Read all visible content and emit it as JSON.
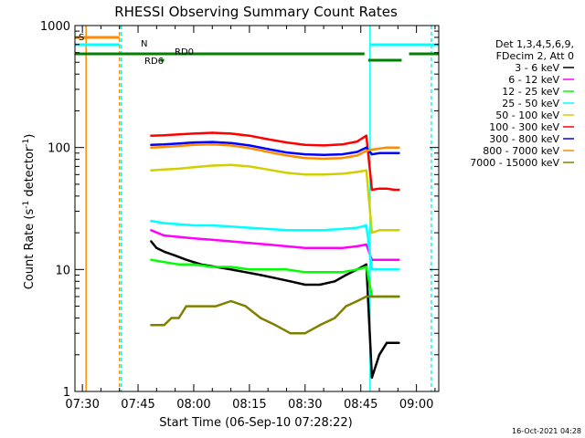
{
  "chart_data": {
    "type": "line",
    "title": "RHESSI Observing Summary Count Rates",
    "xlabel": "Start Time (06-Sep-10 07:28:22)",
    "ylabel_main": "Count Rate (s",
    "ylabel_sup1": "-1",
    "ylabel_mid": " detector",
    "ylabel_sup2": "-1",
    "ylabel_end": ")",
    "yscale": "log",
    "ylim": [
      1,
      1000
    ],
    "xlim_minutes": [
      -2,
      96
    ],
    "x_ticks": [
      {
        "label": "07:30",
        "minutes": 0
      },
      {
        "label": "07:45",
        "minutes": 15
      },
      {
        "label": "08:00",
        "minutes": 30
      },
      {
        "label": "08:15",
        "minutes": 45
      },
      {
        "label": "08:30",
        "minutes": 60
      },
      {
        "label": "08:45",
        "minutes": 75
      },
      {
        "label": "09:00",
        "minutes": 90
      }
    ],
    "y_ticks": [
      {
        "label": "1",
        "value": 1
      },
      {
        "label": "10",
        "value": 10
      },
      {
        "label": "100",
        "value": 100
      },
      {
        "label": "1000",
        "value": 1000
      }
    ],
    "legend_header": [
      "Det 1,3,4,5,6,9,",
      "FDecim 2, Att 0"
    ],
    "series": [
      {
        "name": "3 - 6 keV",
        "color": "#000000",
        "x": [
          18.5,
          20,
          22,
          25,
          28,
          32,
          36,
          40,
          44,
          48,
          52,
          56,
          60,
          64,
          68,
          71,
          74,
          76.5,
          78,
          80,
          82,
          84,
          85.3
        ],
        "values": [
          17,
          15,
          14,
          13,
          12,
          11,
          10.5,
          10,
          9.5,
          9,
          8.5,
          8,
          7.5,
          7.5,
          8,
          9,
          10,
          11,
          1.3,
          2,
          2.5,
          2.5,
          2.5
        ]
      },
      {
        "name": "6 - 12 keV",
        "color": "#ff00ff",
        "x": [
          18.5,
          22,
          26,
          30,
          35,
          40,
          45,
          50,
          55,
          60,
          65,
          70,
          74,
          76.5,
          78,
          80,
          82,
          84,
          85.3
        ],
        "values": [
          21,
          19,
          18.5,
          18,
          17.5,
          17,
          16.5,
          16,
          15.5,
          15,
          15,
          15,
          15.5,
          16,
          12,
          12,
          12,
          12,
          12
        ]
      },
      {
        "name": "12 - 25 keV",
        "color": "#00ff00",
        "x": [
          18.5,
          22,
          26,
          30,
          35,
          40,
          45,
          50,
          55,
          60,
          65,
          70,
          74,
          76.5,
          78,
          80,
          82,
          84,
          85.3
        ],
        "values": [
          12,
          11.5,
          11,
          11,
          10.5,
          10.5,
          10,
          10,
          10,
          9.5,
          9.5,
          9.5,
          10,
          10.5,
          6,
          6,
          6,
          6,
          6
        ]
      },
      {
        "name": "25 - 50 keV",
        "color": "#00ffff",
        "x": [
          18.5,
          22,
          26,
          30,
          35,
          40,
          45,
          50,
          55,
          60,
          65,
          70,
          74,
          76.5,
          78,
          80,
          82,
          84,
          85.3
        ],
        "values": [
          25,
          24,
          23.5,
          23,
          23,
          22.5,
          22,
          21.5,
          21,
          21,
          21,
          21.5,
          22,
          23,
          10,
          10,
          10,
          10,
          10
        ]
      },
      {
        "name": "50 - 100 keV",
        "color": "#d0d000",
        "x": [
          18.5,
          22,
          26,
          30,
          35,
          40,
          45,
          50,
          55,
          60,
          65,
          70,
          74,
          76.5,
          78,
          80,
          82,
          84,
          85.3
        ],
        "values": [
          65,
          66,
          67,
          69,
          71,
          72,
          70,
          66,
          62,
          60,
          60,
          61,
          63,
          65,
          20,
          21,
          21,
          21,
          21
        ]
      },
      {
        "name": "100 - 300 keV",
        "color": "#ff0000",
        "x": [
          18.5,
          22,
          26,
          30,
          35,
          40,
          45,
          50,
          55,
          60,
          65,
          70,
          74,
          76.5,
          78,
          80,
          82,
          84,
          85.3
        ],
        "values": [
          125,
          126,
          128,
          130,
          132,
          130,
          125,
          117,
          110,
          105,
          104,
          106,
          112,
          125,
          45,
          46,
          46,
          45,
          45
        ]
      },
      {
        "name": "300 - 800 keV",
        "color": "#0000ff",
        "x": [
          18.5,
          22,
          26,
          30,
          35,
          40,
          45,
          50,
          55,
          60,
          65,
          70,
          74,
          76.5,
          78,
          80,
          82,
          84,
          85.3
        ],
        "values": [
          105,
          106,
          108,
          110,
          111,
          109,
          104,
          97,
          91,
          88,
          87,
          88,
          92,
          100,
          88,
          90,
          90,
          90,
          90
        ]
      },
      {
        "name": "800 - 7000 keV",
        "color": "#ff8c00",
        "x": [
          18.5,
          22,
          26,
          30,
          35,
          40,
          45,
          50,
          55,
          60,
          65,
          70,
          74,
          76.5,
          78,
          80,
          82,
          84,
          85.3
        ],
        "values": [
          100,
          101,
          103,
          105,
          106,
          104,
          99,
          92,
          86,
          82,
          81,
          82,
          86,
          94,
          96,
          98,
          100,
          100,
          100
        ]
      },
      {
        "name": "7000 - 15000 keV",
        "color": "#808000",
        "x": [
          18.5,
          20,
          22,
          24,
          26,
          28,
          30,
          33,
          36,
          40,
          44,
          48,
          52,
          56,
          60,
          64,
          68,
          71,
          74,
          76.5,
          78,
          80,
          82,
          84,
          85.3
        ],
        "values": [
          3.5,
          3.5,
          3.5,
          4,
          4,
          5,
          5,
          5,
          5,
          5.5,
          5,
          4,
          3.5,
          3,
          3,
          3.5,
          4,
          5,
          5.5,
          6,
          6,
          6,
          6,
          6,
          6
        ]
      }
    ],
    "attenuator_state": {
      "label": "S",
      "color": "#ff8c00",
      "segments": [
        [
          -2,
          10
        ]
      ],
      "markers_minutes": [
        1
      ]
    },
    "night": {
      "label": "N",
      "color": "#00ffff",
      "segments": [
        [
          -2,
          10
        ],
        [
          77.5,
          96
        ]
      ],
      "markers_minutes": [
        77.5
      ]
    },
    "saa_dashes": {
      "color": "#00ffff",
      "markers_minutes": [
        10.5,
        94
      ]
    },
    "other_dashed": {
      "color": "#ff8c00",
      "markers_minutes": [
        10
      ]
    },
    "decimation": {
      "color": "#008000",
      "segments": [
        {
          "label": "RD0",
          "range": [
            -2,
            76
          ]
        },
        {
          "label": "RD6",
          "range": [
            21,
            22
          ]
        },
        {
          "label": "",
          "range": [
            77,
            86
          ]
        },
        {
          "label": "",
          "range": [
            88,
            96
          ]
        }
      ]
    },
    "footer_date": "16-Oct-2021 04:28"
  }
}
